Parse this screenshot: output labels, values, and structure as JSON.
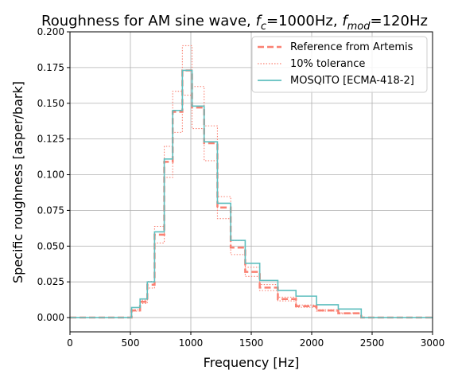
{
  "chart_data": {
    "type": "line",
    "title_main": "Roughness for AM sine wave, ",
    "title_fc_sym": "f",
    "title_fc_sub": "c",
    "title_fc_val": "=1000Hz, ",
    "title_fmod_sym": "f",
    "title_fmod_sub": "mod",
    "title_fmod_val": "=120Hz",
    "xlabel": "Frequency [Hz]",
    "ylabel": "Specific roughness [asper/bark]",
    "xlim": [
      0,
      3000
    ],
    "ylim": [
      -0.01,
      0.2
    ],
    "xticks": [
      0,
      500,
      1000,
      1500,
      2000,
      2500,
      3000
    ],
    "xtick_labels": [
      "0",
      "500",
      "1000",
      "1500",
      "2000",
      "2500",
      "3000"
    ],
    "yticks": [
      0.0,
      0.025,
      0.05,
      0.075,
      0.1,
      0.125,
      0.15,
      0.175,
      0.2
    ],
    "ytick_labels": [
      "0.000",
      "0.025",
      "0.050",
      "0.075",
      "0.100",
      "0.125",
      "0.150",
      "0.175",
      "0.200"
    ],
    "grid": true,
    "legend_position": "top-right",
    "x_edges": [
      0,
      510,
      580,
      640,
      700,
      780,
      850,
      930,
      1010,
      1110,
      1220,
      1330,
      1450,
      1570,
      1720,
      1870,
      2040,
      2220,
      2410,
      3000
    ],
    "series": [
      {
        "name": "Reference from Artemis",
        "style": "dashed",
        "color": "#fa8072",
        "values": [
          0.0,
          0.005,
          0.011,
          0.023,
          0.058,
          0.109,
          0.144,
          0.173,
          0.147,
          0.122,
          0.077,
          0.049,
          0.032,
          0.021,
          0.013,
          0.008,
          0.005,
          0.003,
          0.0
        ]
      },
      {
        "name": "10% tolerance",
        "style": "dotted",
        "color": "#fa8072",
        "upper": [
          0.0,
          0.0055,
          0.0121,
          0.0253,
          0.0638,
          0.1199,
          0.1584,
          0.1903,
          0.1617,
          0.1342,
          0.0847,
          0.0539,
          0.0352,
          0.0231,
          0.0143,
          0.0088,
          0.0055,
          0.0033,
          0.0
        ],
        "lower": [
          0.0,
          0.0045,
          0.0099,
          0.0207,
          0.0522,
          0.0981,
          0.1296,
          0.1557,
          0.1323,
          0.1098,
          0.0693,
          0.0441,
          0.0288,
          0.0189,
          0.0117,
          0.0072,
          0.0045,
          0.0027,
          0.0
        ]
      },
      {
        "name": "MOSQITO [ECMA-418-2]",
        "style": "solid",
        "color": "#5fbfbf",
        "values": [
          0.0,
          0.007,
          0.013,
          0.025,
          0.06,
          0.111,
          0.145,
          0.173,
          0.148,
          0.123,
          0.08,
          0.054,
          0.038,
          0.026,
          0.019,
          0.015,
          0.009,
          0.006,
          0.0
        ]
      }
    ]
  }
}
